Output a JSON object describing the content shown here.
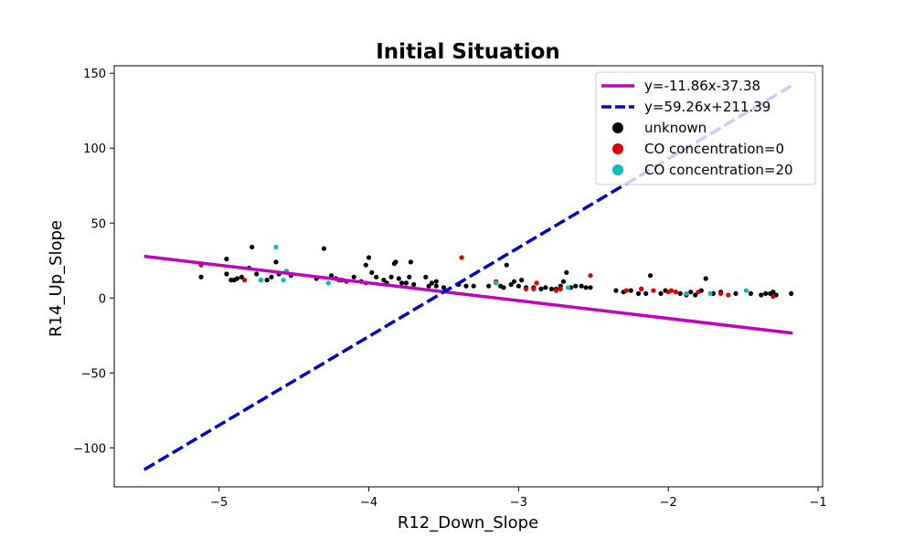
{
  "chart_data": {
    "type": "scatter",
    "title": "Initial Situation",
    "xlabel": "R12_Down_Slope",
    "ylabel": "R14_Up_Slope",
    "xlim": [
      -5.7,
      -0.97
    ],
    "ylim": [
      -126,
      155
    ],
    "xticks": [
      -5,
      -4,
      -3,
      -2,
      -1
    ],
    "yticks": [
      -100,
      -50,
      0,
      50,
      100,
      150
    ],
    "xtick_labels": [
      "−5",
      "−4",
      "−3",
      "−2",
      "−1"
    ],
    "ytick_labels": [
      "−100",
      "−50",
      "0",
      "50",
      "100",
      "150"
    ],
    "grid": false,
    "legend_position": "top-right",
    "lines": [
      {
        "label": "y=-11.86x-37.38",
        "slope": -11.86,
        "intercept": -37.38,
        "x_range": [
          -5.5,
          -1.17
        ],
        "color": "#bf00bf",
        "style": "solid"
      },
      {
        "label": "y=59.26x+211.39",
        "slope": 59.26,
        "intercept": 211.39,
        "x_range": [
          -5.5,
          -1.17
        ],
        "color": "#0000cc",
        "style": "dashed"
      }
    ],
    "series": [
      {
        "name": "unknown",
        "color": "#000000",
        "points": [
          [
            -5.12,
            14
          ],
          [
            -4.95,
            26
          ],
          [
            -4.95,
            16
          ],
          [
            -4.92,
            12
          ],
          [
            -4.9,
            12
          ],
          [
            -4.88,
            13
          ],
          [
            -4.85,
            14
          ],
          [
            -4.8,
            20
          ],
          [
            -4.78,
            34
          ],
          [
            -4.75,
            16
          ],
          [
            -4.72,
            12
          ],
          [
            -4.68,
            12
          ],
          [
            -4.65,
            14
          ],
          [
            -4.62,
            24
          ],
          [
            -4.6,
            16
          ],
          [
            -4.55,
            18
          ],
          [
            -4.52,
            15
          ],
          [
            -4.35,
            13
          ],
          [
            -4.3,
            33
          ],
          [
            -4.25,
            15
          ],
          [
            -4.22,
            13
          ],
          [
            -4.18,
            12
          ],
          [
            -4.15,
            11
          ],
          [
            -4.1,
            14
          ],
          [
            -4.05,
            11
          ],
          [
            -4.02,
            22
          ],
          [
            -4.0,
            27
          ],
          [
            -3.98,
            17
          ],
          [
            -3.95,
            14
          ],
          [
            -3.9,
            12
          ],
          [
            -3.88,
            10
          ],
          [
            -3.85,
            14
          ],
          [
            -3.83,
            23
          ],
          [
            -3.82,
            24
          ],
          [
            -3.8,
            13
          ],
          [
            -3.78,
            10
          ],
          [
            -3.75,
            10
          ],
          [
            -3.73,
            14
          ],
          [
            -3.72,
            24
          ],
          [
            -3.7,
            9
          ],
          [
            -3.62,
            14
          ],
          [
            -3.6,
            8
          ],
          [
            -3.58,
            10
          ],
          [
            -3.55,
            11
          ],
          [
            -3.55,
            8
          ],
          [
            -3.5,
            7
          ],
          [
            -3.4,
            9
          ],
          [
            -3.35,
            8
          ],
          [
            -3.3,
            8
          ],
          [
            -3.2,
            8
          ],
          [
            -3.15,
            10
          ],
          [
            -3.12,
            8
          ],
          [
            -3.1,
            7
          ],
          [
            -3.08,
            22
          ],
          [
            -3.05,
            9
          ],
          [
            -3.03,
            11
          ],
          [
            -3.0,
            8
          ],
          [
            -2.98,
            12
          ],
          [
            -2.95,
            7
          ],
          [
            -2.9,
            7
          ],
          [
            -2.85,
            6
          ],
          [
            -2.82,
            7
          ],
          [
            -2.78,
            6
          ],
          [
            -2.75,
            6
          ],
          [
            -2.72,
            8
          ],
          [
            -2.7,
            11
          ],
          [
            -2.68,
            17
          ],
          [
            -2.65,
            7
          ],
          [
            -2.62,
            8
          ],
          [
            -2.58,
            8
          ],
          [
            -2.55,
            7
          ],
          [
            -2.52,
            7
          ],
          [
            -2.35,
            5
          ],
          [
            -2.3,
            4
          ],
          [
            -2.25,
            5
          ],
          [
            -2.2,
            3
          ],
          [
            -2.18,
            6
          ],
          [
            -2.15,
            3
          ],
          [
            -2.12,
            15
          ],
          [
            -2.05,
            3
          ],
          [
            -2.02,
            5
          ],
          [
            -1.95,
            4
          ],
          [
            -1.92,
            3
          ],
          [
            -1.88,
            2
          ],
          [
            -1.85,
            4
          ],
          [
            -1.82,
            2
          ],
          [
            -1.78,
            5
          ],
          [
            -1.75,
            13
          ],
          [
            -1.7,
            3
          ],
          [
            -1.65,
            4
          ],
          [
            -1.55,
            3
          ],
          [
            -1.45,
            3
          ],
          [
            -1.38,
            2
          ],
          [
            -1.35,
            3
          ],
          [
            -1.32,
            3
          ],
          [
            -1.3,
            4
          ],
          [
            -1.28,
            2
          ],
          [
            -1.18,
            3
          ]
        ]
      },
      {
        "name": "CO concentration=0",
        "color": "#dd0000",
        "points": [
          [
            -5.12,
            22
          ],
          [
            -4.83,
            12
          ],
          [
            -4.2,
            12
          ],
          [
            -4.15,
            11
          ],
          [
            -4.02,
            10
          ],
          [
            -3.38,
            27
          ],
          [
            -3.15,
            11
          ],
          [
            -2.95,
            6
          ],
          [
            -2.9,
            6
          ],
          [
            -2.88,
            10
          ],
          [
            -2.75,
            5
          ],
          [
            -2.72,
            6
          ],
          [
            -2.52,
            15
          ],
          [
            -2.28,
            5
          ],
          [
            -2.18,
            6
          ],
          [
            -2.1,
            5
          ],
          [
            -2.0,
            4
          ],
          [
            -1.98,
            5
          ],
          [
            -1.95,
            4
          ],
          [
            -1.8,
            4
          ],
          [
            -1.65,
            3
          ],
          [
            -1.6,
            2
          ],
          [
            -1.3,
            1
          ]
        ]
      },
      {
        "name": "CO concentration=20",
        "color": "#00bfbf",
        "points": [
          [
            -4.72,
            12
          ],
          [
            -4.62,
            34
          ],
          [
            -4.57,
            12
          ],
          [
            -4.55,
            18
          ],
          [
            -4.27,
            10
          ],
          [
            -3.15,
            10
          ],
          [
            -2.67,
            7
          ],
          [
            -1.88,
            3
          ],
          [
            -1.72,
            3
          ],
          [
            -1.48,
            5
          ]
        ]
      }
    ],
    "legend": [
      {
        "label": "y=-11.86x-37.38",
        "kind": "line-solid",
        "color": "#bf00bf"
      },
      {
        "label": "y=59.26x+211.39",
        "kind": "line-dashed",
        "color": "#0000cc"
      },
      {
        "label": "unknown",
        "kind": "marker",
        "color": "#000000"
      },
      {
        "label": "CO concentration=0",
        "kind": "marker",
        "color": "#dd0000"
      },
      {
        "label": "CO concentration=20",
        "kind": "marker",
        "color": "#00bfbf"
      }
    ]
  }
}
